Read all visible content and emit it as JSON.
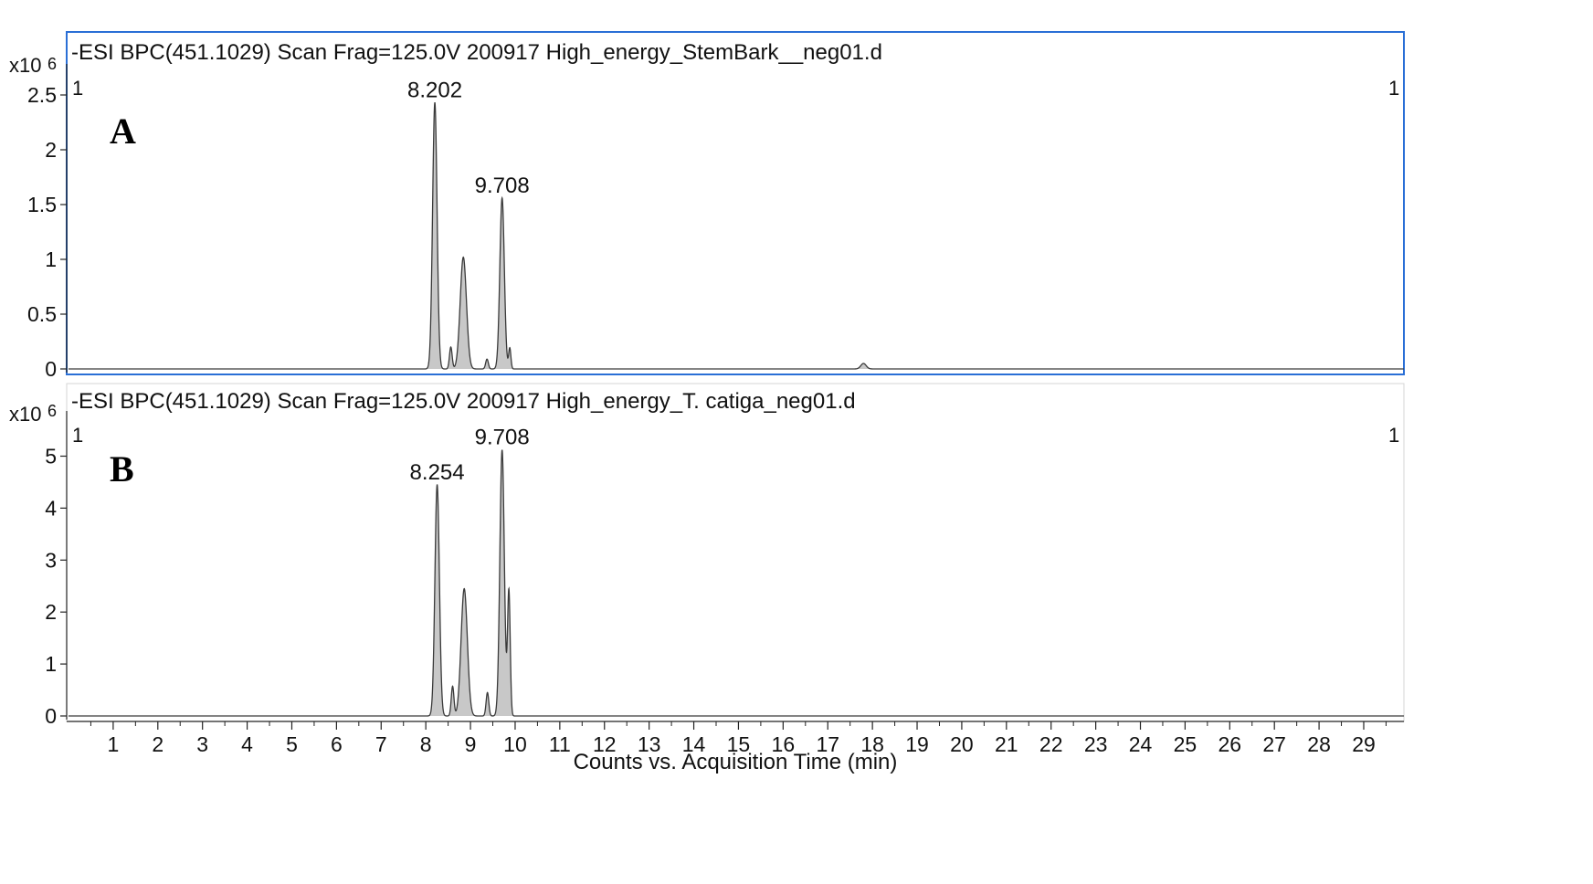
{
  "chart_data": [
    {
      "type": "area",
      "panel_label": "A",
      "title": "-ESI BPC(451.1029) Scan Frag=125.0V 200917 High_energy_StemBark__neg01.d",
      "y_multiplier_label": "x10",
      "y_exponent": "6",
      "corner_markers": [
        "1",
        "1"
      ],
      "selected": true,
      "accent_color": "#2a6fd6",
      "xlim": [
        0,
        29.9
      ],
      "ylim": [
        0,
        2.5
      ],
      "yticks": [
        0,
        0.5,
        1,
        1.5,
        2,
        2.5
      ],
      "ytick_labels": [
        "0",
        "0.5",
        "1",
        "1.5",
        "2",
        "2.5"
      ],
      "peaks": [
        {
          "rt": 8.202,
          "height": 2.43,
          "width": 0.05
        },
        {
          "rt": 8.56,
          "height": 0.2,
          "width": 0.03
        },
        {
          "rt": 8.84,
          "height": 1.02,
          "width": 0.07
        },
        {
          "rt": 9.37,
          "height": 0.09,
          "width": 0.03
        },
        {
          "rt": 9.708,
          "height": 1.56,
          "width": 0.05
        },
        {
          "rt": 9.88,
          "height": 0.19,
          "width": 0.025
        },
        {
          "rt": 17.8,
          "height": 0.05,
          "width": 0.06
        }
      ],
      "peak_labels": [
        {
          "text": "8.202",
          "rt": 8.202,
          "height": 2.43
        },
        {
          "text": "9.708",
          "rt": 9.708,
          "height": 1.56
        }
      ]
    },
    {
      "type": "area",
      "panel_label": "B",
      "title": "-ESI BPC(451.1029) Scan Frag=125.0V 200917 High_energy_T. catiga_neg01.d",
      "y_multiplier_label": "x10",
      "y_exponent": "6",
      "corner_markers": [
        "1",
        "1"
      ],
      "selected": false,
      "xlim": [
        0,
        29.9
      ],
      "ylim": [
        0,
        5.5
      ],
      "yticks": [
        0,
        1,
        2,
        3,
        4,
        5
      ],
      "ytick_labels": [
        "0",
        "1",
        "2",
        "3",
        "4",
        "5"
      ],
      "xticks": [
        1,
        2,
        3,
        4,
        5,
        6,
        7,
        8,
        9,
        10,
        11,
        12,
        13,
        14,
        15,
        16,
        17,
        18,
        19,
        20,
        21,
        22,
        23,
        24,
        25,
        26,
        27,
        28,
        29
      ],
      "xtick_labels": [
        "1",
        "2",
        "3",
        "4",
        "5",
        "6",
        "7",
        "8",
        "9",
        "10",
        "11",
        "12",
        "13",
        "14",
        "15",
        "16",
        "17",
        "18",
        "19",
        "20",
        "21",
        "22",
        "23",
        "24",
        "25",
        "26",
        "27",
        "28",
        "29"
      ],
      "xlabel": "Counts vs. Acquisition Time (min)",
      "peaks": [
        {
          "rt": 8.254,
          "height": 4.45,
          "width": 0.05
        },
        {
          "rt": 8.6,
          "height": 0.57,
          "width": 0.03
        },
        {
          "rt": 8.86,
          "height": 2.45,
          "width": 0.07
        },
        {
          "rt": 9.38,
          "height": 0.45,
          "width": 0.03
        },
        {
          "rt": 9.708,
          "height": 5.12,
          "width": 0.05
        },
        {
          "rt": 9.86,
          "height": 2.4,
          "width": 0.03
        }
      ],
      "peak_labels": [
        {
          "text": "8.254",
          "rt": 8.254,
          "height": 4.45
        },
        {
          "text": "9.708",
          "rt": 9.708,
          "height": 5.12
        }
      ]
    }
  ]
}
